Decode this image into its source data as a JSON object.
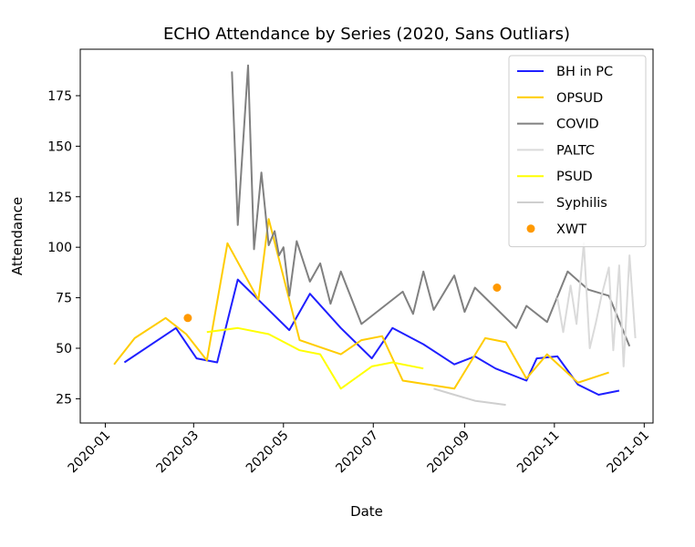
{
  "chart_data": {
    "type": "line",
    "title": "ECHO Attendance by Series (2020, Sans Outliars)",
    "xlabel": "Date",
    "ylabel": "Attendance",
    "xlim": [
      "2019-12-15",
      "2021-01-07"
    ],
    "ylim": [
      13,
      198
    ],
    "x_ticks": [
      "2020-01",
      "2020-03",
      "2020-05",
      "2020-07",
      "2020-09",
      "2020-11",
      "2021-01"
    ],
    "y_ticks": [
      25,
      50,
      75,
      100,
      125,
      150,
      175
    ],
    "grid": false,
    "legend_position": "upper right",
    "series": [
      {
        "name": "BH in PC",
        "kind": "line",
        "color": "#1f1fff",
        "points": [
          [
            "2020-01-14",
            43
          ],
          [
            "2020-02-18",
            60
          ],
          [
            "2020-03-03",
            45
          ],
          [
            "2020-03-17",
            43
          ],
          [
            "2020-03-31",
            84
          ],
          [
            "2020-04-14",
            74
          ],
          [
            "2020-05-05",
            59
          ],
          [
            "2020-05-19",
            77
          ],
          [
            "2020-06-09",
            60
          ],
          [
            "2020-06-30",
            45
          ],
          [
            "2020-07-14",
            60
          ],
          [
            "2020-08-04",
            52
          ],
          [
            "2020-08-25",
            42
          ],
          [
            "2020-09-08",
            46
          ],
          [
            "2020-09-22",
            40
          ],
          [
            "2020-10-13",
            34
          ],
          [
            "2020-10-20",
            45
          ],
          [
            "2020-11-03",
            46
          ],
          [
            "2020-11-17",
            32
          ],
          [
            "2020-12-01",
            27
          ],
          [
            "2020-12-15",
            29
          ]
        ]
      },
      {
        "name": "OPSUD",
        "kind": "line",
        "color": "#ffcc00",
        "points": [
          [
            "2020-01-07",
            42
          ],
          [
            "2020-01-21",
            55
          ],
          [
            "2020-02-11",
            65
          ],
          [
            "2020-02-25",
            57
          ],
          [
            "2020-03-10",
            44
          ],
          [
            "2020-03-24",
            102
          ],
          [
            "2020-04-14",
            74
          ],
          [
            "2020-04-21",
            114
          ],
          [
            "2020-05-12",
            54
          ],
          [
            "2020-06-09",
            47
          ],
          [
            "2020-06-23",
            54
          ],
          [
            "2020-07-07",
            56
          ],
          [
            "2020-07-21",
            34
          ],
          [
            "2020-08-25",
            30
          ],
          [
            "2020-09-15",
            55
          ],
          [
            "2020-09-29",
            53
          ],
          [
            "2020-10-13",
            35
          ],
          [
            "2020-10-27",
            47
          ],
          [
            "2020-11-17",
            33
          ],
          [
            "2020-12-08",
            38
          ]
        ]
      },
      {
        "name": "COVID",
        "kind": "line",
        "color": "#808080",
        "points": [
          [
            "2020-03-27",
            187
          ],
          [
            "2020-03-31",
            111
          ],
          [
            "2020-04-07",
            190
          ],
          [
            "2020-04-11",
            99
          ],
          [
            "2020-04-16",
            137
          ],
          [
            "2020-04-21",
            101
          ],
          [
            "2020-04-25",
            108
          ],
          [
            "2020-04-28",
            96
          ],
          [
            "2020-05-01",
            100
          ],
          [
            "2020-05-05",
            76
          ],
          [
            "2020-05-10",
            103
          ],
          [
            "2020-05-19",
            83
          ],
          [
            "2020-05-26",
            92
          ],
          [
            "2020-06-02",
            72
          ],
          [
            "2020-06-09",
            88
          ],
          [
            "2020-06-23",
            62
          ],
          [
            "2020-07-21",
            78
          ],
          [
            "2020-07-28",
            67
          ],
          [
            "2020-08-04",
            88
          ],
          [
            "2020-08-11",
            69
          ],
          [
            "2020-08-25",
            86
          ],
          [
            "2020-09-01",
            68
          ],
          [
            "2020-09-08",
            80
          ],
          [
            "2020-10-06",
            60
          ],
          [
            "2020-10-13",
            71
          ],
          [
            "2020-10-27",
            63
          ],
          [
            "2020-11-10",
            88
          ],
          [
            "2020-11-24",
            79
          ],
          [
            "2020-12-08",
            76
          ],
          [
            "2020-12-22",
            51
          ]
        ]
      },
      {
        "name": "PALTC",
        "kind": "line",
        "color": "#dadada",
        "points": [
          [
            "2020-11-03",
            75
          ],
          [
            "2020-11-07",
            58
          ],
          [
            "2020-11-12",
            81
          ],
          [
            "2020-11-16",
            62
          ],
          [
            "2020-11-21",
            102
          ],
          [
            "2020-11-25",
            50
          ],
          [
            "2020-11-29",
            62
          ],
          [
            "2020-12-03",
            76
          ],
          [
            "2020-12-08",
            90
          ],
          [
            "2020-12-11",
            49
          ],
          [
            "2020-12-15",
            91
          ],
          [
            "2020-12-18",
            41
          ],
          [
            "2020-12-22",
            96
          ],
          [
            "2020-12-26",
            55
          ]
        ]
      },
      {
        "name": "PSUD",
        "kind": "line",
        "color": "#ffff00",
        "points": [
          [
            "2020-03-10",
            58
          ],
          [
            "2020-03-31",
            60
          ],
          [
            "2020-04-21",
            57
          ],
          [
            "2020-05-12",
            49
          ],
          [
            "2020-05-26",
            47
          ],
          [
            "2020-06-09",
            30
          ],
          [
            "2020-06-30",
            41
          ],
          [
            "2020-07-14",
            43
          ],
          [
            "2020-08-04",
            40
          ]
        ]
      },
      {
        "name": "Syphilis",
        "kind": "line",
        "color": "#cfcfcf",
        "points": [
          [
            "2020-08-11",
            30
          ],
          [
            "2020-08-25",
            27
          ],
          [
            "2020-09-08",
            24
          ],
          [
            "2020-09-29",
            22
          ]
        ]
      },
      {
        "name": "XWT",
        "kind": "scatter",
        "color": "#ff9900",
        "points": [
          [
            "2020-02-26",
            65
          ],
          [
            "2020-09-23",
            80
          ]
        ]
      }
    ]
  }
}
